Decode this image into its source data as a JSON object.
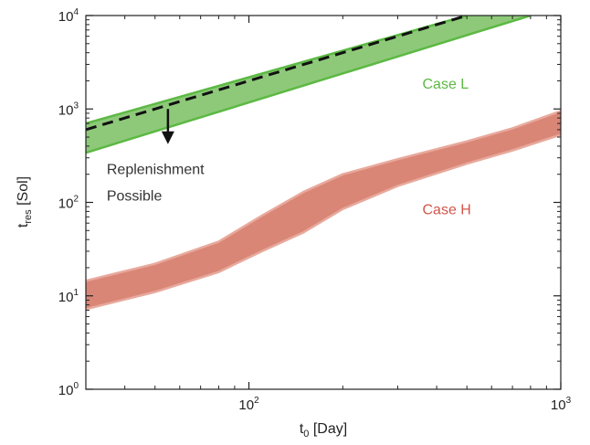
{
  "chart_data": {
    "type": "area",
    "title": "",
    "xlabel": {
      "main": "t",
      "sub": "0",
      "unit": "[Day]"
    },
    "ylabel": {
      "main": "t",
      "sub": "res",
      "unit": "[Sol]"
    },
    "xscale": "log",
    "yscale": "log",
    "xlim": [
      30,
      1000
    ],
    "ylim": [
      1,
      10000
    ],
    "grid": false,
    "x_ticks": [
      {
        "value": 100,
        "base": "10",
        "exp": "2"
      },
      {
        "value": 1000,
        "base": "10",
        "exp": "3"
      }
    ],
    "y_ticks": [
      {
        "value": 1,
        "base": "10",
        "exp": "0"
      },
      {
        "value": 10,
        "base": "10",
        "exp": "1"
      },
      {
        "value": 100,
        "base": "10",
        "exp": "2"
      },
      {
        "value": 1000,
        "base": "10",
        "exp": "3"
      },
      {
        "value": 10000,
        "base": "10",
        "exp": "4"
      }
    ],
    "bands": [
      {
        "name": "Case L",
        "fill": "#8ec97a",
        "stroke": "#5cb943",
        "x": [
          30,
          800
        ],
        "upper": [
          700,
          10000
        ],
        "lower": [
          340,
          10000
        ],
        "lower_x": [
          30,
          800
        ],
        "upper_x": [
          30,
          500
        ]
      },
      {
        "name": "Case H",
        "fill": "#d98677",
        "stroke": "#e8a99c",
        "x": [
          30,
          50,
          80,
          110,
          150,
          200,
          300,
          500,
          700,
          1000
        ],
        "upper": [
          14.5,
          22,
          38,
          72,
          130,
          200,
          290,
          450,
          620,
          950
        ],
        "lower": [
          7.2,
          11,
          18,
          30,
          48,
          85,
          150,
          260,
          360,
          530
        ]
      }
    ],
    "center_line": {
      "style": "dashed",
      "color": "#111111",
      "x": [
        30,
        500
      ],
      "y": [
        600,
        10000
      ]
    },
    "annotations": [
      {
        "text": "Case L",
        "color": "#5cb943",
        "x": 360,
        "y": 1650
      },
      {
        "text": "Case H",
        "color": "#d2554a",
        "x": 360,
        "y": 75
      },
      {
        "text": "Replenishment",
        "color": "#333333",
        "x": 35,
        "y": 200
      },
      {
        "text": "Possible",
        "color": "#333333",
        "x": 35,
        "y": 105
      }
    ],
    "arrow": {
      "x": 55,
      "y_from": 1000,
      "y_to": 420,
      "color": "#111111"
    }
  }
}
